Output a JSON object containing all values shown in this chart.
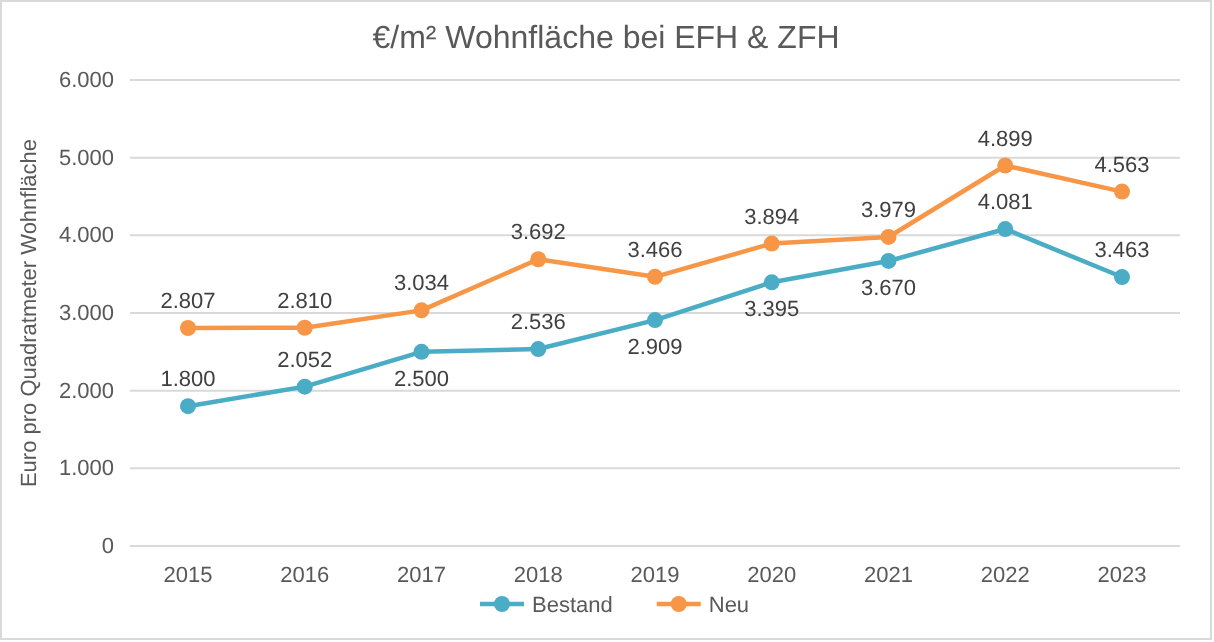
{
  "chart_data": {
    "type": "line",
    "title": "€/m² Wohnfläche bei EFH & ZFH",
    "ylabel": "Euro pro Quadratmeter Wohnfläche",
    "categories": [
      "2015",
      "2016",
      "2017",
      "2018",
      "2019",
      "2020",
      "2021",
      "2022",
      "2023"
    ],
    "series": [
      {
        "name": "Bestand",
        "color": "#4bacc6",
        "values": [
          1800,
          2052,
          2500,
          2536,
          2909,
          3395,
          3670,
          4081,
          3463
        ],
        "value_labels": [
          "1.800",
          "2.052",
          "2.500",
          "2.536",
          "2.909",
          "3.395",
          "3.670",
          "4.081",
          "3.463"
        ]
      },
      {
        "name": "Neu",
        "color": "#f79646",
        "values": [
          2807,
          2810,
          3034,
          3692,
          3466,
          3894,
          3979,
          4899,
          4563
        ],
        "value_labels": [
          "2.807",
          "2.810",
          "3.034",
          "3.692",
          "3.466",
          "3.894",
          "3.979",
          "4.899",
          "4.563"
        ]
      }
    ],
    "ylim": [
      0,
      6000
    ],
    "yticks": [
      {
        "value": 0,
        "label": "0"
      },
      {
        "value": 1000,
        "label": "1.000"
      },
      {
        "value": 2000,
        "label": "2.000"
      },
      {
        "value": 3000,
        "label": "3.000"
      },
      {
        "value": 4000,
        "label": "4.000"
      },
      {
        "value": 5000,
        "label": "5.000"
      },
      {
        "value": 6000,
        "label": "6.000"
      }
    ],
    "grid": "y",
    "legend": "bottom",
    "marker": "circle",
    "line_style": "solid"
  }
}
